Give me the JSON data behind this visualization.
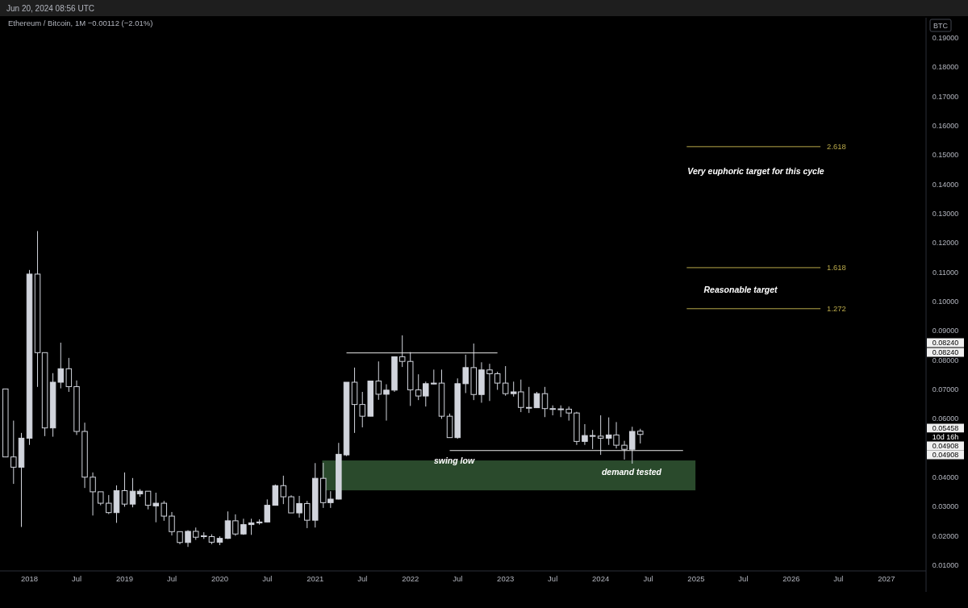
{
  "chart_data": {
    "type": "candlestick",
    "title": "Ethereum / Bitcoin, 1M  −0.00112 (−2.01%)",
    "ylabel": "BTC",
    "color": "#d1d4dc",
    "x": [
      "2017-10",
      "2017-11",
      "2017-12",
      "2018-01",
      "2018-02",
      "2018-03",
      "2018-04",
      "2018-05",
      "2018-06",
      "2018-07",
      "2018-08",
      "2018-09",
      "2018-10",
      "2018-11",
      "2018-12",
      "2019-01",
      "2019-02",
      "2019-03",
      "2019-04",
      "2019-05",
      "2019-06",
      "2019-07",
      "2019-08",
      "2019-09",
      "2019-10",
      "2019-11",
      "2019-12",
      "2020-01",
      "2020-02",
      "2020-03",
      "2020-04",
      "2020-05",
      "2020-06",
      "2020-07",
      "2020-08",
      "2020-09",
      "2020-10",
      "2020-11",
      "2020-12",
      "2021-01",
      "2021-02",
      "2021-03",
      "2021-04",
      "2021-05",
      "2021-06",
      "2021-07",
      "2021-08",
      "2021-09",
      "2021-10",
      "2021-11",
      "2021-12",
      "2022-01",
      "2022-02",
      "2022-03",
      "2022-04",
      "2022-05",
      "2022-06",
      "2022-07",
      "2022-08",
      "2022-09",
      "2022-10",
      "2022-11",
      "2022-12",
      "2023-01",
      "2023-02",
      "2023-03",
      "2023-04",
      "2023-05",
      "2023-06",
      "2023-07",
      "2023-08",
      "2023-09",
      "2023-10",
      "2023-11",
      "2023-12",
      "2024-01",
      "2024-02",
      "2024-03",
      "2024-04",
      "2024-05",
      "2024-06"
    ],
    "ohlc": [
      [
        0.0701,
        0.0701,
        0.0469,
        0.0469
      ],
      [
        0.0469,
        0.0593,
        0.0377,
        0.0434
      ],
      [
        0.0434,
        0.0551,
        0.023,
        0.0533
      ],
      [
        0.0533,
        0.1107,
        0.051,
        0.1093
      ],
      [
        0.1093,
        0.124,
        0.0708,
        0.0825
      ],
      [
        0.0825,
        0.0825,
        0.054,
        0.0568
      ],
      [
        0.0568,
        0.0755,
        0.0538,
        0.0724
      ],
      [
        0.0724,
        0.0859,
        0.0703,
        0.077
      ],
      [
        0.077,
        0.0807,
        0.0691,
        0.0709
      ],
      [
        0.0709,
        0.073,
        0.0544,
        0.0556
      ],
      [
        0.0556,
        0.0586,
        0.0363,
        0.04
      ],
      [
        0.04,
        0.0416,
        0.0269,
        0.035
      ],
      [
        0.035,
        0.035,
        0.0304,
        0.0311
      ],
      [
        0.0311,
        0.0339,
        0.0274,
        0.0279
      ],
      [
        0.0279,
        0.0372,
        0.0244,
        0.0354
      ],
      [
        0.0354,
        0.0416,
        0.0299,
        0.0308
      ],
      [
        0.0308,
        0.0397,
        0.0297,
        0.0352
      ],
      [
        0.0343,
        0.0359,
        0.0333,
        0.0352
      ],
      [
        0.0352,
        0.0352,
        0.029,
        0.0304
      ],
      [
        0.0302,
        0.0347,
        0.0246,
        0.0311
      ],
      [
        0.0311,
        0.0319,
        0.0251,
        0.0267
      ],
      [
        0.0267,
        0.0281,
        0.0201,
        0.0214
      ],
      [
        0.0214,
        0.0214,
        0.0171,
        0.0177
      ],
      [
        0.0177,
        0.0219,
        0.0162,
        0.0215
      ],
      [
        0.0215,
        0.0228,
        0.0186,
        0.0195
      ],
      [
        0.02,
        0.0212,
        0.0189,
        0.0197
      ],
      [
        0.0197,
        0.0205,
        0.0171,
        0.0178
      ],
      [
        0.0178,
        0.0198,
        0.0168,
        0.0191
      ],
      [
        0.0191,
        0.0283,
        0.0189,
        0.0251
      ],
      [
        0.0251,
        0.0273,
        0.02,
        0.0206
      ],
      [
        0.0206,
        0.0258,
        0.0203,
        0.0238
      ],
      [
        0.0238,
        0.0258,
        0.0203,
        0.0244
      ],
      [
        0.0244,
        0.0256,
        0.0238,
        0.0247
      ],
      [
        0.0247,
        0.0324,
        0.0246,
        0.0304
      ],
      [
        0.0304,
        0.0375,
        0.0303,
        0.0371
      ],
      [
        0.0371,
        0.0405,
        0.0308,
        0.0333
      ],
      [
        0.0333,
        0.0338,
        0.0278,
        0.0278
      ],
      [
        0.0278,
        0.0336,
        0.0262,
        0.031
      ],
      [
        0.031,
        0.0319,
        0.0226,
        0.0253
      ],
      [
        0.0253,
        0.0448,
        0.0228,
        0.0396
      ],
      [
        0.0396,
        0.0449,
        0.0295,
        0.0313
      ],
      [
        0.0313,
        0.0352,
        0.0295,
        0.0325
      ],
      [
        0.0325,
        0.0517,
        0.0324,
        0.0478
      ],
      [
        0.0476,
        0.0724,
        0.0472,
        0.0724
      ],
      [
        0.0724,
        0.0774,
        0.0551,
        0.0648
      ],
      [
        0.0648,
        0.0691,
        0.057,
        0.0608
      ],
      [
        0.0608,
        0.0728,
        0.0608,
        0.0728
      ],
      [
        0.0728,
        0.0795,
        0.0664,
        0.0683
      ],
      [
        0.0683,
        0.0717,
        0.0593,
        0.0697
      ],
      [
        0.0697,
        0.0811,
        0.0691,
        0.0811
      ],
      [
        0.0811,
        0.0884,
        0.0776,
        0.0795
      ],
      [
        0.0795,
        0.0827,
        0.0643,
        0.0698
      ],
      [
        0.0698,
        0.0751,
        0.0663,
        0.0677
      ],
      [
        0.0677,
        0.0726,
        0.0641,
        0.0719
      ],
      [
        0.0718,
        0.0767,
        0.0717,
        0.0721
      ],
      [
        0.0721,
        0.0767,
        0.0599,
        0.0608
      ],
      [
        0.0608,
        0.0617,
        0.0535,
        0.0535
      ],
      [
        0.0535,
        0.0737,
        0.0531,
        0.0719
      ],
      [
        0.0719,
        0.0818,
        0.0687,
        0.0774
      ],
      [
        0.0774,
        0.0856,
        0.0663,
        0.0682
      ],
      [
        0.0682,
        0.0792,
        0.0654,
        0.0766
      ],
      [
        0.0766,
        0.0787,
        0.066,
        0.0753
      ],
      [
        0.0753,
        0.076,
        0.0698,
        0.0721
      ],
      [
        0.0721,
        0.0779,
        0.0678,
        0.0685
      ],
      [
        0.0685,
        0.0726,
        0.0675,
        0.0691
      ],
      [
        0.0691,
        0.0733,
        0.0622,
        0.0638
      ],
      [
        0.0638,
        0.0708,
        0.0619,
        0.0637
      ],
      [
        0.0637,
        0.0691,
        0.0636,
        0.0685
      ],
      [
        0.0685,
        0.0708,
        0.0605,
        0.0634
      ],
      [
        0.0634,
        0.0645,
        0.0611,
        0.0632
      ],
      [
        0.0632,
        0.0645,
        0.0605,
        0.0633
      ],
      [
        0.0632,
        0.0641,
        0.0593,
        0.0619
      ],
      [
        0.0619,
        0.0623,
        0.051,
        0.0522
      ],
      [
        0.0522,
        0.0581,
        0.051,
        0.0542
      ],
      [
        0.0542,
        0.0561,
        0.0496,
        0.054
      ],
      [
        0.054,
        0.0611,
        0.0476,
        0.0533
      ],
      [
        0.0533,
        0.0604,
        0.051,
        0.0544
      ],
      [
        0.0544,
        0.0588,
        0.0498,
        0.0509
      ],
      [
        0.0509,
        0.0524,
        0.046,
        0.0495
      ],
      [
        0.0495,
        0.0572,
        0.0446,
        0.0556
      ],
      [
        0.0557,
        0.0565,
        0.0515,
        0.05458
      ]
    ],
    "series": [
      {
        "type": "line",
        "color": "#e8e8e8",
        "x": [
          "2021-05",
          "2022-12"
        ],
        "values": [
          0.0824,
          0.0824
        ]
      },
      {
        "type": "line",
        "color": "#e8e8e8",
        "x": [
          "2022-06",
          "2024-11-12"
        ],
        "values": [
          0.04908,
          0.04908
        ]
      },
      {
        "type": "line",
        "name": "2.618",
        "color": "#b8a84a",
        "x": [
          "2024-11-26",
          "2026-04-23"
        ],
        "values": [
          0.1528,
          0.1528
        ]
      },
      {
        "type": "line",
        "name": "1.618",
        "color": "#b8a84a",
        "x": [
          "2024-11-26",
          "2026-04-23"
        ],
        "values": [
          0.1115,
          0.1115
        ]
      },
      {
        "type": "line",
        "name": "1.272",
        "color": "#b8a84a",
        "x": [
          "2024-11-26",
          "2026-04-23"
        ],
        "values": [
          0.0975,
          0.0975
        ]
      }
    ],
    "bands": [
      {
        "axis": "y",
        "from": 0.0355,
        "to": 0.0457,
        "color": "#2a4a2c"
      }
    ],
    "annotations": [
      "Jun 20, 2024 08:56 UTC",
      "Very euphoric target for this cycle",
      "Reasonable target",
      "swing low",
      "demand tested",
      "0.08240",
      "0.08240",
      "0.05458",
      "10d 16h",
      "0.04908",
      "0.04908"
    ],
    "xlim": [
      "2017-09-10",
      "2027-06-02"
    ],
    "xticks": [
      {
        "value": "2018-01",
        "label": "2018"
      },
      {
        "value": "2018-07",
        "label": "Jul"
      },
      {
        "value": "2019-01",
        "label": "2019"
      },
      {
        "value": "2019-07",
        "label": "Jul"
      },
      {
        "value": "2020-01",
        "label": "2020"
      },
      {
        "value": "2020-07",
        "label": "Jul"
      },
      {
        "value": "2021-01",
        "label": "2021"
      },
      {
        "value": "2021-07",
        "label": "Jul"
      },
      {
        "value": "2022-01",
        "label": "2022"
      },
      {
        "value": "2022-07",
        "label": "Jul"
      },
      {
        "value": "2023-01",
        "label": "2023"
      },
      {
        "value": "2023-07",
        "label": "Jul"
      },
      {
        "value": "2024-01",
        "label": "2024"
      },
      {
        "value": "2024-07",
        "label": "Jul"
      },
      {
        "value": "2025-01",
        "label": "2025"
      },
      {
        "value": "2025-07",
        "label": "Jul"
      },
      {
        "value": "2026-01",
        "label": "2026"
      },
      {
        "value": "2026-07",
        "label": "Jul"
      },
      {
        "value": "2027-01",
        "label": "2027"
      }
    ],
    "ylim": [
      0.008,
      0.1968
    ],
    "yticks": [
      {
        "value": 0.01,
        "label": "0.01000"
      },
      {
        "value": 0.02,
        "label": "0.02000"
      },
      {
        "value": 0.03,
        "label": "0.03000"
      },
      {
        "value": 0.04,
        "label": "0.04000"
      },
      {
        "value": 0.06,
        "label": "0.06000"
      },
      {
        "value": 0.07,
        "label": "0.07000"
      },
      {
        "value": 0.08,
        "label": "0.08000"
      },
      {
        "value": 0.09,
        "label": "0.09000"
      },
      {
        "value": 0.1,
        "label": "0.10000"
      },
      {
        "value": 0.11,
        "label": "0.11000"
      },
      {
        "value": 0.12,
        "label": "0.12000"
      },
      {
        "value": 0.13,
        "label": "0.13000"
      },
      {
        "value": 0.14,
        "label": "0.14000"
      },
      {
        "value": 0.15,
        "label": "0.15000"
      },
      {
        "value": 0.16,
        "label": "0.16000"
      },
      {
        "value": 0.17,
        "label": "0.17000"
      },
      {
        "value": 0.18,
        "label": "0.18000"
      },
      {
        "value": 0.19,
        "label": "0.19000"
      }
    ]
  }
}
